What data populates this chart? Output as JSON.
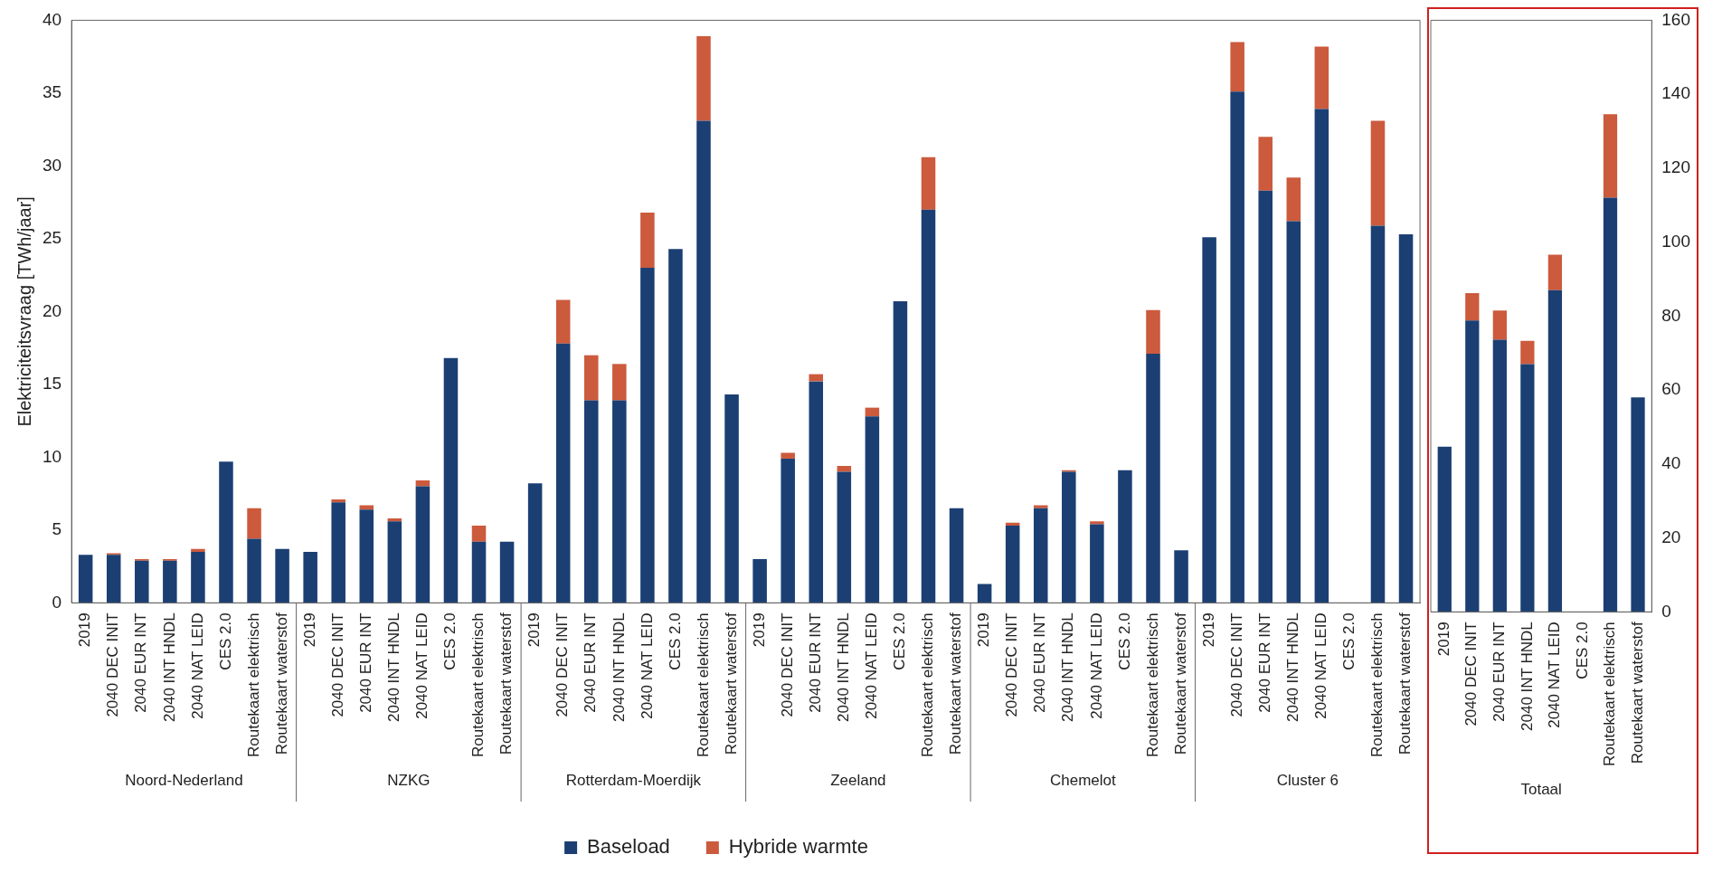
{
  "chart_data": [
    {
      "type": "bar",
      "stacked": true,
      "ylabel": "Elektriciteitsvraag [TWh/jaar]",
      "ylim": [
        0,
        40
      ],
      "yticks": [
        0,
        5,
        10,
        15,
        20,
        25,
        30,
        35,
        40
      ],
      "legend": "bottom",
      "grid": false,
      "categories": [
        "2019",
        "2040 DEC INIT",
        "2040 EUR INT",
        "2040 INT HNDL",
        "2040 NAT LEID",
        "CES 2.0",
        "Routekaart elektrisch",
        "Routekaart waterstof",
        "2019",
        "2040 DEC INIT",
        "2040 EUR INT",
        "2040 INT HNDL",
        "2040 NAT LEID",
        "CES 2.0",
        "Routekaart elektrisch",
        "Routekaart waterstof",
        "2019",
        "2040 DEC INIT",
        "2040 EUR INT",
        "2040 INT HNDL",
        "2040 NAT LEID",
        "CES 2.0",
        "Routekaart elektrisch",
        "Routekaart waterstof",
        "2019",
        "2040 DEC INIT",
        "2040 EUR INT",
        "2040 INT HNDL",
        "2040 NAT LEID",
        "CES 2.0",
        "Routekaart elektrisch",
        "Routekaart waterstof",
        "2019",
        "2040 DEC INIT",
        "2040 EUR INT",
        "2040 INT HNDL",
        "2040 NAT LEID",
        "CES 2.0",
        "Routekaart elektrisch",
        "Routekaart waterstof",
        "2019",
        "2040 DEC INIT",
        "2040 EUR INT",
        "2040 INT HNDL",
        "2040 NAT LEID",
        "CES 2.0",
        "Routekaart elektrisch",
        "Routekaart waterstof"
      ],
      "annotations": [
        "Noord-Nederland",
        "NZKG",
        "Rotterdam-Moerdijk",
        "Zeeland",
        "Chemelot",
        "Cluster 6"
      ],
      "series": [
        {
          "name": "Baseload",
          "color": "#1b3f73",
          "values": [
            3.3,
            3.3,
            2.9,
            2.9,
            3.5,
            9.7,
            4.4,
            3.7,
            3.5,
            6.9,
            6.4,
            5.6,
            8.0,
            16.8,
            4.2,
            4.2,
            8.2,
            17.8,
            13.9,
            13.9,
            23.0,
            24.3,
            33.1,
            14.3,
            3.0,
            9.9,
            15.2,
            9.0,
            12.8,
            20.7,
            27.0,
            6.5,
            1.3,
            5.3,
            6.5,
            9.0,
            5.4,
            9.1,
            17.1,
            3.6,
            25.1,
            35.1,
            28.3,
            26.2,
            33.9,
            null,
            25.9,
            25.3
          ]
        },
        {
          "name": "Hybride warmte",
          "color": "#cc5a3c",
          "values": [
            0,
            0.1,
            0.1,
            0.1,
            0.2,
            0,
            2.1,
            0,
            0,
            0.2,
            0.3,
            0.2,
            0.4,
            0,
            1.1,
            0,
            0,
            3.0,
            3.1,
            2.5,
            3.8,
            0,
            5.8,
            0,
            0,
            0.4,
            0.5,
            0.4,
            0.6,
            0,
            3.6,
            0,
            0,
            0.2,
            0.2,
            0.1,
            0.2,
            0,
            3.0,
            0,
            0,
            3.4,
            3.7,
            3.0,
            4.3,
            null,
            7.2,
            0
          ]
        }
      ]
    },
    {
      "type": "bar",
      "stacked": true,
      "y2lim": [
        0,
        160
      ],
      "y2ticks": [
        0,
        20,
        40,
        60,
        80,
        100,
        120,
        140,
        160
      ],
      "grid": false,
      "categories": [
        "2019",
        "2040 DEC INIT",
        "2040 EUR INT",
        "2040 INT HNDL",
        "2040 NAT LEID",
        "CES 2.0",
        "Routekaart elektrisch",
        "Routekaart waterstof"
      ],
      "annotations": [
        "Totaal"
      ],
      "series": [
        {
          "color": "#1b3f73",
          "axis": "y2",
          "values": [
            44.7,
            78.8,
            73.6,
            67.0,
            87.0,
            null,
            112.0,
            58.0
          ]
        },
        {
          "color": "#cc5a3c",
          "axis": "y2",
          "values": [
            0,
            7.4,
            7.9,
            6.3,
            9.6,
            null,
            22.6,
            0
          ]
        }
      ]
    }
  ]
}
